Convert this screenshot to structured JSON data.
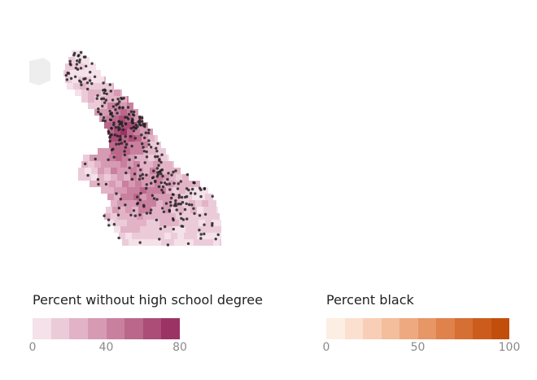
{
  "left_panel": {
    "legend_title": "Percent without high school degree",
    "tick_labels": [
      "0",
      "40",
      "80"
    ],
    "tick_values": [
      0,
      40,
      80
    ],
    "scale_min": 0,
    "scale_max": 80,
    "colors": [
      "#f4e1e9",
      "#eccbd9",
      "#e2b3c6",
      "#d69ab3",
      "#c9809f",
      "#bb678b",
      "#ab4d77",
      "#9b3365"
    ]
  },
  "right_panel": {
    "legend_title": "Percent black",
    "tick_labels": [
      "0",
      "50",
      "100"
    ],
    "tick_values": [
      0,
      50,
      100
    ],
    "scale_min": 0,
    "scale_max": 100,
    "colors": [
      "#fdeee4",
      "#fbe0cf",
      "#f8cfb6",
      "#f4bd9c",
      "#eea981",
      "#e79666",
      "#df824c",
      "#d66f33",
      "#cc5c1c",
      "#c24e0c"
    ]
  },
  "map_colors": {
    "outside_city": "#eeeeee",
    "point": "#222222"
  }
}
